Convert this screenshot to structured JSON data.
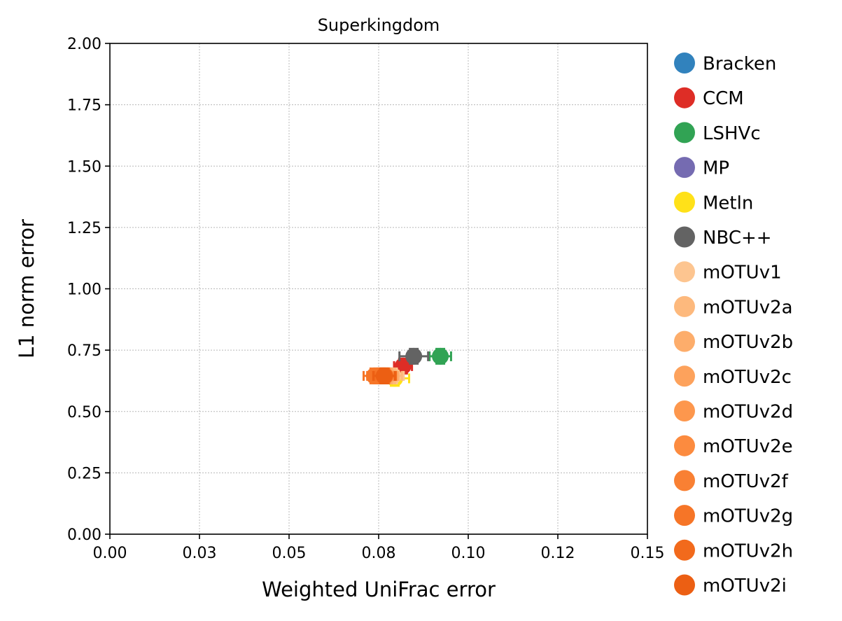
{
  "chart_data": {
    "type": "scatter",
    "title": "Superkingdom",
    "xlabel": "Weighted UniFrac error",
    "ylabel": "L1 norm error",
    "xlim": [
      0,
      0.15
    ],
    "ylim": [
      0,
      2.0
    ],
    "xticks": [
      0,
      0.025,
      0.05,
      0.075,
      0.1,
      0.125,
      0.15
    ],
    "xtick_labels": [
      "0.00",
      "0.03",
      "0.05",
      "0.08",
      "0.10",
      "0.12",
      "0.15"
    ],
    "yticks": [
      0,
      0.25,
      0.5,
      0.75,
      1.0,
      1.25,
      1.5,
      1.75,
      2.0
    ],
    "ytick_labels": [
      "0.00",
      "0.25",
      "0.50",
      "0.75",
      "1.00",
      "1.25",
      "1.50",
      "1.75",
      "2.00"
    ],
    "grid": true,
    "legend_position": "outside-right",
    "series": [
      {
        "name": "Bracken",
        "color": "#3182bd",
        "points": []
      },
      {
        "name": "CCM",
        "color": "#de2d26",
        "points": [
          {
            "x": 0.0818,
            "y": 0.685,
            "xerr": 0.0025,
            "yerr": 0.03
          }
        ]
      },
      {
        "name": "LSHVc",
        "color": "#31a354",
        "points": [
          {
            "x": 0.0922,
            "y": 0.725,
            "xerr": 0.003,
            "yerr": 0.03
          }
        ]
      },
      {
        "name": "MP",
        "color": "#756bb1",
        "points": []
      },
      {
        "name": "Metln",
        "color": "#ffe119",
        "points": [
          {
            "x": 0.0795,
            "y": 0.635,
            "xerr": 0.004,
            "yerr": 0.03
          }
        ]
      },
      {
        "name": "NBC++",
        "color": "#636363",
        "points": [
          {
            "x": 0.0848,
            "y": 0.725,
            "xerr": 0.004,
            "yerr": 0.03
          }
        ]
      },
      {
        "name": "mOTUv1",
        "color": "#fdc590",
        "points": [
          {
            "x": 0.079,
            "y": 0.645,
            "xerr": 0.003,
            "yerr": 0.03
          }
        ]
      },
      {
        "name": "mOTUv2a",
        "color": "#fdb97d",
        "points": [
          {
            "x": 0.0785,
            "y": 0.645,
            "xerr": 0.003,
            "yerr": 0.03
          }
        ]
      },
      {
        "name": "mOTUv2b",
        "color": "#fdad6b",
        "points": [
          {
            "x": 0.0775,
            "y": 0.645,
            "xerr": 0.003,
            "yerr": 0.03
          }
        ]
      },
      {
        "name": "mOTUv2c",
        "color": "#fda25c",
        "points": [
          {
            "x": 0.077,
            "y": 0.645,
            "xerr": 0.003,
            "yerr": 0.03
          }
        ]
      },
      {
        "name": "mOTUv2d",
        "color": "#fd974d",
        "points": [
          {
            "x": 0.0762,
            "y": 0.645,
            "xerr": 0.003,
            "yerr": 0.03
          }
        ]
      },
      {
        "name": "mOTUv2e",
        "color": "#fc8b3f",
        "points": [
          {
            "x": 0.0755,
            "y": 0.645,
            "xerr": 0.003,
            "yerr": 0.03
          }
        ]
      },
      {
        "name": "mOTUv2f",
        "color": "#f98033",
        "points": [
          {
            "x": 0.0748,
            "y": 0.645,
            "xerr": 0.003,
            "yerr": 0.03
          }
        ]
      },
      {
        "name": "mOTUv2g",
        "color": "#f67527",
        "points": [
          {
            "x": 0.0738,
            "y": 0.645,
            "xerr": 0.003,
            "yerr": 0.03
          }
        ]
      },
      {
        "name": "mOTUv2h",
        "color": "#f26a1c",
        "points": [
          {
            "x": 0.0768,
            "y": 0.645,
            "xerr": 0.003,
            "yerr": 0.03
          }
        ]
      },
      {
        "name": "mOTUv2i",
        "color": "#ec5f13",
        "points": [
          {
            "x": 0.0765,
            "y": 0.645,
            "xerr": 0.003,
            "yerr": 0.03
          }
        ]
      }
    ]
  }
}
